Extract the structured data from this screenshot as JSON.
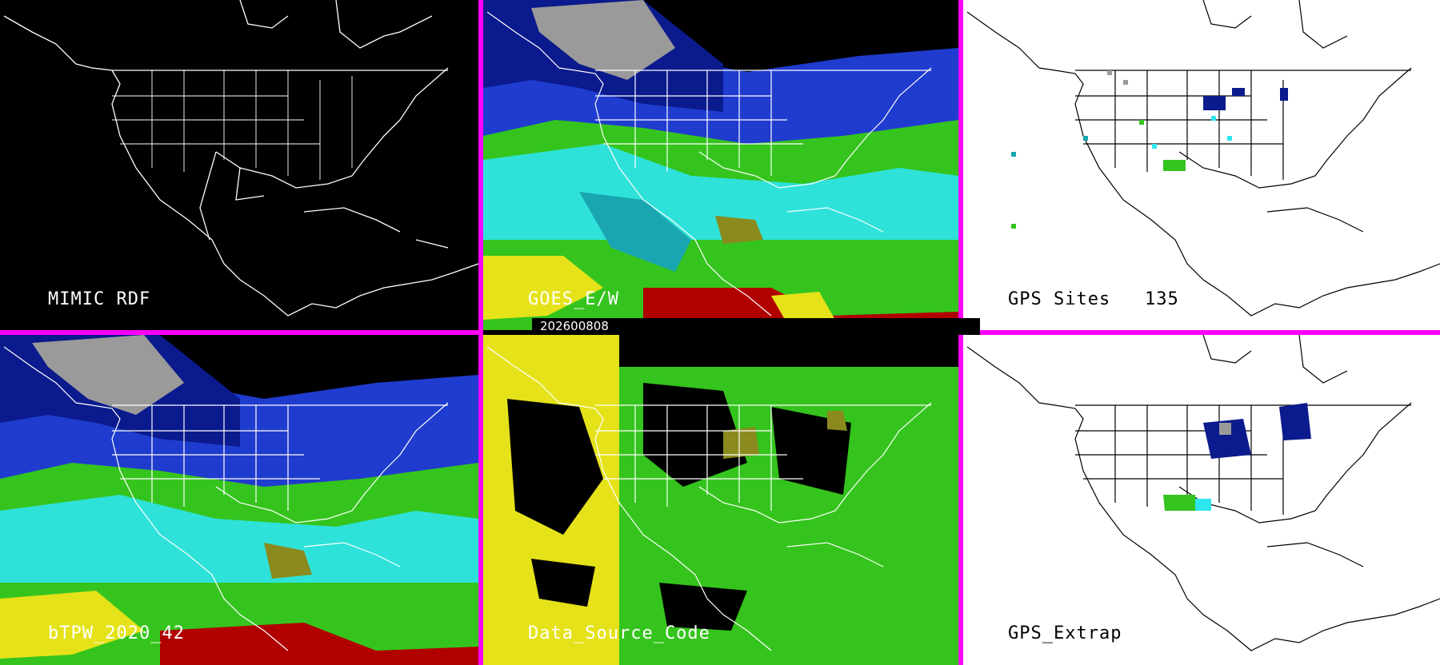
{
  "timestamp": "202600808",
  "panels": {
    "top_left": {
      "label": "MIMIC RDF"
    },
    "top_center": {
      "label": "GOES_E/W"
    },
    "top_right": {
      "label": "GPS Sites",
      "count": "135"
    },
    "bottom_left": {
      "label": "bTPW_2020_42"
    },
    "bottom_center": {
      "label": "Data_Source_Code"
    },
    "bottom_right": {
      "label": "GPS_Extrap"
    }
  },
  "colors": {
    "separator": "#ff00ff",
    "map_outline_on_dark": "#ffffff",
    "map_outline_on_light": "#000000",
    "tpw_dark_blue": "#0b1a8c",
    "tpw_blue": "#1f3ccf",
    "tpw_teal": "#1aa6b0",
    "tpw_cyan": "#2ee6ee",
    "tpw_green": "#35c41d",
    "tpw_olive": "#8a8a1e",
    "tpw_yellow": "#e5e21a",
    "tpw_red": "#b00000",
    "tpw_gray": "#9a9a9a"
  }
}
